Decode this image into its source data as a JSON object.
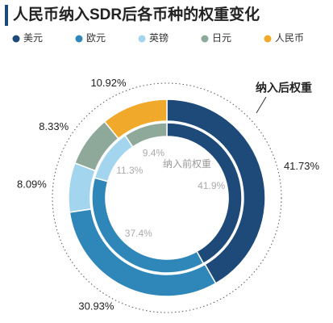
{
  "chart_data": {
    "type": "donut",
    "title": "人民币纳入SDR后各币种的权重变化",
    "categories": [
      "美元",
      "欧元",
      "英镑",
      "日元",
      "人民币"
    ],
    "colors": [
      "#1d4a78",
      "#2e86b9",
      "#a3d6ee",
      "#8ea89a",
      "#f0a92a"
    ],
    "series": [
      {
        "name": "纳入后权重",
        "values": [
          41.73,
          30.93,
          8.09,
          8.33,
          10.92
        ],
        "value_labels": [
          "41.73%",
          "30.93%",
          "8.09%",
          "8.33%",
          "10.92%"
        ]
      },
      {
        "name": "纳入前权重",
        "values": [
          41.9,
          37.4,
          11.3,
          9.4,
          null
        ],
        "value_labels": [
          "41.9%",
          "37.4%",
          "11.3%",
          "9.4%",
          null
        ]
      }
    ]
  }
}
